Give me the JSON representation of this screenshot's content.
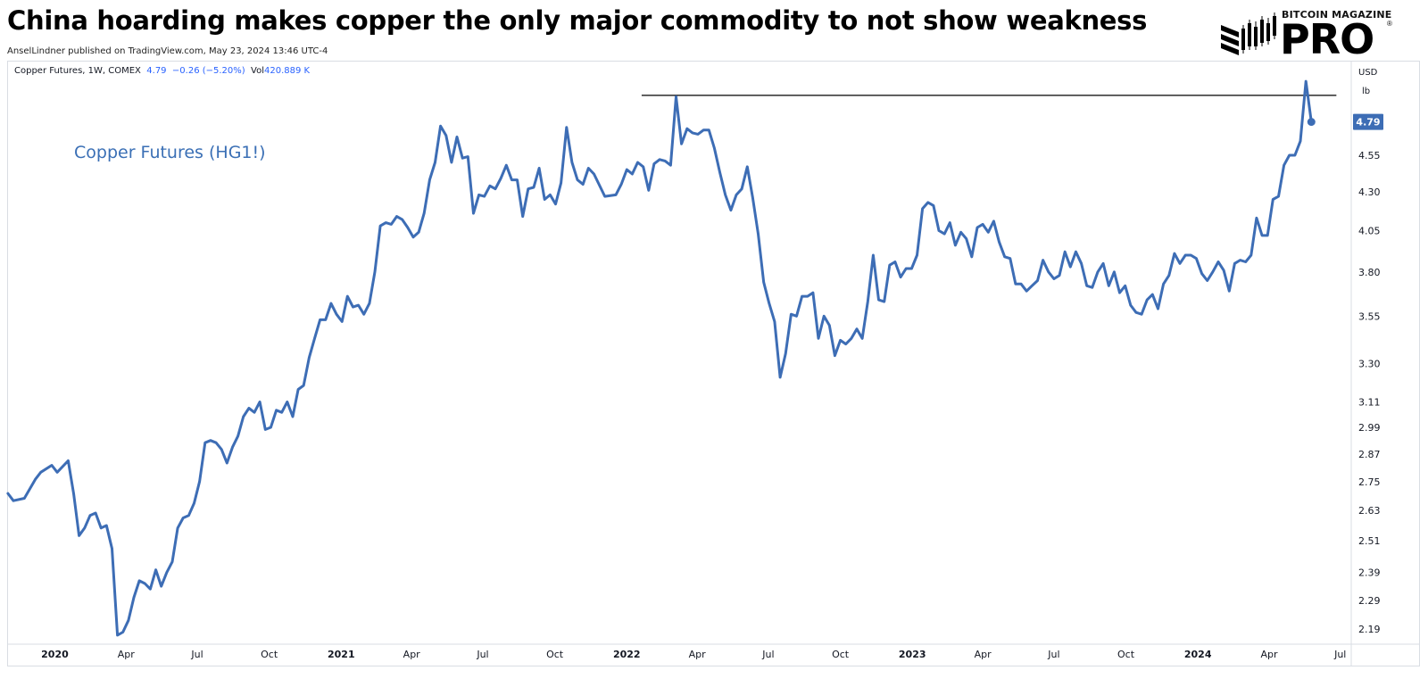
{
  "headline": "China hoarding makes copper the only major commodity to not show weakness",
  "byline": "AnselLindner published on TradingView.com, May 23, 2024 13:46 UTC-4",
  "brand": {
    "top_text": "BITCOIN MAGAZINE",
    "main_text": "PRO",
    "reg_mark": "®"
  },
  "legend": {
    "symbol": "Copper Futures, 1W, COMEX",
    "last": "4.79",
    "change": "−0.26 (−5.20%)",
    "vol_label": "Vol",
    "vol_value": "420.889 K"
  },
  "annotation": "Copper Futures (HG1!)",
  "price_axis": {
    "currency": "USD",
    "unit": "lb",
    "last_badge": "4.79"
  },
  "colors": {
    "line": "#3d6db5",
    "badge": "#3d6db5",
    "legend_value": "#2962ff",
    "resistance": "#000000"
  },
  "chart_data": {
    "type": "line",
    "scale": "log",
    "x_start": "2019-11-01",
    "x_end": "2024-07-15",
    "ylim": [
      2.14,
      5.25
    ],
    "y_ticks": [
      2.19,
      2.29,
      2.39,
      2.51,
      2.63,
      2.75,
      2.87,
      2.99,
      3.11,
      3.3,
      3.55,
      3.8,
      4.05,
      4.3,
      4.55,
      4.79
    ],
    "x_ticks": [
      {
        "date": "2020-01-01",
        "label": "2020",
        "bold": true
      },
      {
        "date": "2020-04-01",
        "label": "Apr",
        "bold": false
      },
      {
        "date": "2020-07-01",
        "label": "Jul",
        "bold": false
      },
      {
        "date": "2020-10-01",
        "label": "Oct",
        "bold": false
      },
      {
        "date": "2021-01-01",
        "label": "2021",
        "bold": true
      },
      {
        "date": "2021-04-01",
        "label": "Apr",
        "bold": false
      },
      {
        "date": "2021-07-01",
        "label": "Jul",
        "bold": false
      },
      {
        "date": "2021-10-01",
        "label": "Oct",
        "bold": false
      },
      {
        "date": "2022-01-01",
        "label": "2022",
        "bold": true
      },
      {
        "date": "2022-04-01",
        "label": "Apr",
        "bold": false
      },
      {
        "date": "2022-07-01",
        "label": "Jul",
        "bold": false
      },
      {
        "date": "2022-10-01",
        "label": "Oct",
        "bold": false
      },
      {
        "date": "2023-01-01",
        "label": "2023",
        "bold": true
      },
      {
        "date": "2023-04-01",
        "label": "Apr",
        "bold": false
      },
      {
        "date": "2023-07-01",
        "label": "Jul",
        "bold": false
      },
      {
        "date": "2023-10-01",
        "label": "Oct",
        "bold": false
      },
      {
        "date": "2024-01-01",
        "label": "2024",
        "bold": true
      },
      {
        "date": "2024-04-01",
        "label": "Apr",
        "bold": false
      },
      {
        "date": "2024-07-01",
        "label": "Jul",
        "bold": false
      }
    ],
    "series": [
      {
        "points": [
          [
            "2019-11-02",
            2.7
          ],
          [
            "2019-11-09",
            2.67
          ],
          [
            "2019-11-23",
            2.68
          ],
          [
            "2019-12-07",
            2.76
          ],
          [
            "2019-12-14",
            2.79
          ],
          [
            "2019-12-28",
            2.82
          ],
          [
            "2020-01-04",
            2.79
          ],
          [
            "2020-01-18",
            2.84
          ],
          [
            "2020-01-25",
            2.7
          ],
          [
            "2020-02-01",
            2.53
          ],
          [
            "2020-02-08",
            2.56
          ],
          [
            "2020-02-15",
            2.61
          ],
          [
            "2020-02-22",
            2.62
          ],
          [
            "2020-02-29",
            2.56
          ],
          [
            "2020-03-07",
            2.57
          ],
          [
            "2020-03-14",
            2.48
          ],
          [
            "2020-03-21",
            2.17
          ],
          [
            "2020-03-28",
            2.18
          ],
          [
            "2020-04-04",
            2.22
          ],
          [
            "2020-04-11",
            2.3
          ],
          [
            "2020-04-18",
            2.36
          ],
          [
            "2020-04-25",
            2.35
          ],
          [
            "2020-05-02",
            2.33
          ],
          [
            "2020-05-09",
            2.4
          ],
          [
            "2020-05-16",
            2.34
          ],
          [
            "2020-05-23",
            2.39
          ],
          [
            "2020-05-30",
            2.43
          ],
          [
            "2020-06-06",
            2.56
          ],
          [
            "2020-06-13",
            2.6
          ],
          [
            "2020-06-20",
            2.61
          ],
          [
            "2020-06-27",
            2.66
          ],
          [
            "2020-07-04",
            2.75
          ],
          [
            "2020-07-11",
            2.92
          ],
          [
            "2020-07-18",
            2.93
          ],
          [
            "2020-07-25",
            2.92
          ],
          [
            "2020-08-01",
            2.89
          ],
          [
            "2020-08-08",
            2.83
          ],
          [
            "2020-08-15",
            2.9
          ],
          [
            "2020-08-22",
            2.95
          ],
          [
            "2020-08-29",
            3.04
          ],
          [
            "2020-09-05",
            3.08
          ],
          [
            "2020-09-12",
            3.06
          ],
          [
            "2020-09-19",
            3.11
          ],
          [
            "2020-09-26",
            2.98
          ],
          [
            "2020-10-03",
            2.99
          ],
          [
            "2020-10-10",
            3.07
          ],
          [
            "2020-10-17",
            3.06
          ],
          [
            "2020-10-24",
            3.11
          ],
          [
            "2020-10-31",
            3.04
          ],
          [
            "2020-11-07",
            3.17
          ],
          [
            "2020-11-14",
            3.19
          ],
          [
            "2020-11-21",
            3.33
          ],
          [
            "2020-11-28",
            3.43
          ],
          [
            "2020-12-05",
            3.53
          ],
          [
            "2020-12-12",
            3.53
          ],
          [
            "2020-12-19",
            3.62
          ],
          [
            "2020-12-26",
            3.56
          ],
          [
            "2021-01-02",
            3.52
          ],
          [
            "2021-01-09",
            3.66
          ],
          [
            "2021-01-16",
            3.6
          ],
          [
            "2021-01-23",
            3.61
          ],
          [
            "2021-01-30",
            3.56
          ],
          [
            "2021-02-06",
            3.62
          ],
          [
            "2021-02-13",
            3.8
          ],
          [
            "2021-02-20",
            4.08
          ],
          [
            "2021-02-27",
            4.1
          ],
          [
            "2021-03-06",
            4.09
          ],
          [
            "2021-03-13",
            4.14
          ],
          [
            "2021-03-20",
            4.12
          ],
          [
            "2021-03-27",
            4.07
          ],
          [
            "2021-04-03",
            4.01
          ],
          [
            "2021-04-10",
            4.04
          ],
          [
            "2021-04-17",
            4.16
          ],
          [
            "2021-04-24",
            4.38
          ],
          [
            "2021-05-01",
            4.5
          ],
          [
            "2021-05-08",
            4.76
          ],
          [
            "2021-05-15",
            4.69
          ],
          [
            "2021-05-22",
            4.5
          ],
          [
            "2021-05-29",
            4.68
          ],
          [
            "2021-06-05",
            4.53
          ],
          [
            "2021-06-12",
            4.54
          ],
          [
            "2021-06-19",
            4.16
          ],
          [
            "2021-06-26",
            4.28
          ],
          [
            "2021-07-03",
            4.27
          ],
          [
            "2021-07-10",
            4.34
          ],
          [
            "2021-07-17",
            4.32
          ],
          [
            "2021-07-24",
            4.39
          ],
          [
            "2021-07-31",
            4.48
          ],
          [
            "2021-08-07",
            4.38
          ],
          [
            "2021-08-14",
            4.38
          ],
          [
            "2021-08-21",
            4.14
          ],
          [
            "2021-08-28",
            4.32
          ],
          [
            "2021-09-04",
            4.33
          ],
          [
            "2021-09-11",
            4.46
          ],
          [
            "2021-09-18",
            4.25
          ],
          [
            "2021-09-25",
            4.28
          ],
          [
            "2021-10-02",
            4.22
          ],
          [
            "2021-10-09",
            4.36
          ],
          [
            "2021-10-16",
            4.75
          ],
          [
            "2021-10-23",
            4.5
          ],
          [
            "2021-10-30",
            4.38
          ],
          [
            "2021-11-06",
            4.35
          ],
          [
            "2021-11-13",
            4.46
          ],
          [
            "2021-11-20",
            4.42
          ],
          [
            "2021-12-04",
            4.27
          ],
          [
            "2021-12-18",
            4.28
          ],
          [
            "2021-12-25",
            4.35
          ],
          [
            "2022-01-01",
            4.45
          ],
          [
            "2022-01-08",
            4.42
          ],
          [
            "2022-01-15",
            4.5
          ],
          [
            "2022-01-22",
            4.47
          ],
          [
            "2022-01-29",
            4.31
          ],
          [
            "2022-02-05",
            4.49
          ],
          [
            "2022-02-12",
            4.52
          ],
          [
            "2022-02-19",
            4.51
          ],
          [
            "2022-02-26",
            4.48
          ],
          [
            "2022-03-05",
            4.98
          ],
          [
            "2022-03-12",
            4.63
          ],
          [
            "2022-03-19",
            4.74
          ],
          [
            "2022-03-26",
            4.71
          ],
          [
            "2022-04-02",
            4.7
          ],
          [
            "2022-04-09",
            4.73
          ],
          [
            "2022-04-16",
            4.73
          ],
          [
            "2022-04-23",
            4.6
          ],
          [
            "2022-04-30",
            4.43
          ],
          [
            "2022-05-07",
            4.28
          ],
          [
            "2022-05-14",
            4.18
          ],
          [
            "2022-05-21",
            4.28
          ],
          [
            "2022-05-28",
            4.32
          ],
          [
            "2022-06-04",
            4.47
          ],
          [
            "2022-06-11",
            4.26
          ],
          [
            "2022-06-18",
            4.03
          ],
          [
            "2022-06-25",
            3.74
          ],
          [
            "2022-07-02",
            3.62
          ],
          [
            "2022-07-09",
            3.52
          ],
          [
            "2022-07-16",
            3.23
          ],
          [
            "2022-07-23",
            3.35
          ],
          [
            "2022-07-30",
            3.56
          ],
          [
            "2022-08-06",
            3.55
          ],
          [
            "2022-08-13",
            3.66
          ],
          [
            "2022-08-20",
            3.66
          ],
          [
            "2022-08-27",
            3.68
          ],
          [
            "2022-09-03",
            3.43
          ],
          [
            "2022-09-10",
            3.55
          ],
          [
            "2022-09-17",
            3.5
          ],
          [
            "2022-09-24",
            3.34
          ],
          [
            "2022-10-01",
            3.42
          ],
          [
            "2022-10-08",
            3.4
          ],
          [
            "2022-10-15",
            3.43
          ],
          [
            "2022-10-22",
            3.48
          ],
          [
            "2022-10-29",
            3.43
          ],
          [
            "2022-11-05",
            3.63
          ],
          [
            "2022-11-12",
            3.9
          ],
          [
            "2022-11-19",
            3.64
          ],
          [
            "2022-11-26",
            3.63
          ],
          [
            "2022-12-03",
            3.84
          ],
          [
            "2022-12-10",
            3.86
          ],
          [
            "2022-12-17",
            3.77
          ],
          [
            "2022-12-24",
            3.82
          ],
          [
            "2022-12-31",
            3.82
          ],
          [
            "2023-01-07",
            3.9
          ],
          [
            "2023-01-14",
            4.19
          ],
          [
            "2023-01-21",
            4.23
          ],
          [
            "2023-01-28",
            4.21
          ],
          [
            "2023-02-04",
            4.05
          ],
          [
            "2023-02-11",
            4.03
          ],
          [
            "2023-02-18",
            4.1
          ],
          [
            "2023-02-25",
            3.96
          ],
          [
            "2023-03-04",
            4.04
          ],
          [
            "2023-03-11",
            4.0
          ],
          [
            "2023-03-18",
            3.89
          ],
          [
            "2023-03-25",
            4.07
          ],
          [
            "2023-04-01",
            4.09
          ],
          [
            "2023-04-08",
            4.04
          ],
          [
            "2023-04-15",
            4.11
          ],
          [
            "2023-04-22",
            3.98
          ],
          [
            "2023-04-29",
            3.89
          ],
          [
            "2023-05-06",
            3.88
          ],
          [
            "2023-05-13",
            3.73
          ],
          [
            "2023-05-20",
            3.73
          ],
          [
            "2023-05-27",
            3.69
          ],
          [
            "2023-06-03",
            3.72
          ],
          [
            "2023-06-10",
            3.75
          ],
          [
            "2023-06-17",
            3.87
          ],
          [
            "2023-06-24",
            3.8
          ],
          [
            "2023-07-01",
            3.76
          ],
          [
            "2023-07-08",
            3.78
          ],
          [
            "2023-07-15",
            3.92
          ],
          [
            "2023-07-22",
            3.83
          ],
          [
            "2023-07-29",
            3.92
          ],
          [
            "2023-08-05",
            3.85
          ],
          [
            "2023-08-12",
            3.72
          ],
          [
            "2023-08-19",
            3.71
          ],
          [
            "2023-08-26",
            3.8
          ],
          [
            "2023-09-02",
            3.85
          ],
          [
            "2023-09-09",
            3.72
          ],
          [
            "2023-09-16",
            3.8
          ],
          [
            "2023-09-23",
            3.68
          ],
          [
            "2023-09-30",
            3.72
          ],
          [
            "2023-10-07",
            3.61
          ],
          [
            "2023-10-14",
            3.57
          ],
          [
            "2023-10-21",
            3.56
          ],
          [
            "2023-10-28",
            3.64
          ],
          [
            "2023-11-04",
            3.67
          ],
          [
            "2023-11-11",
            3.59
          ],
          [
            "2023-11-18",
            3.73
          ],
          [
            "2023-11-25",
            3.78
          ],
          [
            "2023-12-02",
            3.91
          ],
          [
            "2023-12-09",
            3.85
          ],
          [
            "2023-12-16",
            3.9
          ],
          [
            "2023-12-23",
            3.9
          ],
          [
            "2023-12-30",
            3.88
          ],
          [
            "2024-01-06",
            3.79
          ],
          [
            "2024-01-13",
            3.75
          ],
          [
            "2024-01-20",
            3.8
          ],
          [
            "2024-01-27",
            3.86
          ],
          [
            "2024-02-03",
            3.81
          ],
          [
            "2024-02-10",
            3.69
          ],
          [
            "2024-02-17",
            3.85
          ],
          [
            "2024-02-24",
            3.87
          ],
          [
            "2024-03-02",
            3.86
          ],
          [
            "2024-03-09",
            3.9
          ],
          [
            "2024-03-16",
            4.13
          ],
          [
            "2024-03-23",
            4.02
          ],
          [
            "2024-03-30",
            4.02
          ],
          [
            "2024-04-06",
            4.25
          ],
          [
            "2024-04-13",
            4.27
          ],
          [
            "2024-04-20",
            4.48
          ],
          [
            "2024-04-27",
            4.55
          ],
          [
            "2024-05-04",
            4.55
          ],
          [
            "2024-05-11",
            4.65
          ],
          [
            "2024-05-18",
            5.1
          ],
          [
            "2024-05-25",
            4.79
          ]
        ]
      }
    ],
    "resistance": {
      "value": 4.99,
      "from": "2022-01-20",
      "to": "2024-06-26"
    }
  }
}
